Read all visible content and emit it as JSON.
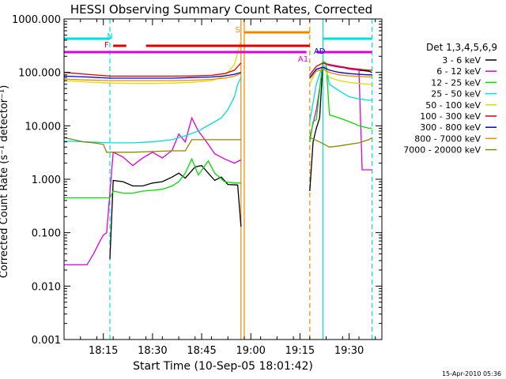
{
  "chart_data": {
    "type": "line",
    "title": "HESSI Observing Summary Count Rates, Corrected",
    "xlabel": "Start Time (10-Sep-05 18:01:42)",
    "ylabel": "Corrected Count Rate (s⁻¹ detector⁻¹)",
    "x_range": [
      "18:03",
      "19:40"
    ],
    "y_scale": "log",
    "ylim": [
      0.001,
      1000
    ],
    "x_ticks": [
      "18:15",
      "18:30",
      "18:45",
      "19:00",
      "19:15",
      "19:30"
    ],
    "y_ticks": [
      "0.001",
      "0.010",
      "0.100",
      "1.000",
      "10.000",
      "100.000",
      "1000.000"
    ],
    "legend_title": "Det 1,3,4,5,6,9",
    "legend_position": "right",
    "series": [
      {
        "name": "3 - 6 keV",
        "color": "#000000",
        "points": [
          [
            "18:17",
            0.032
          ],
          [
            "18:18",
            0.95
          ],
          [
            "18:21",
            0.9
          ],
          [
            "18:24",
            0.75
          ],
          [
            "18:27",
            0.75
          ],
          [
            "18:30",
            0.85
          ],
          [
            "18:33",
            0.9
          ],
          [
            "18:36",
            1.1
          ],
          [
            "18:38",
            1.3
          ],
          [
            "18:40",
            1.05
          ],
          [
            "18:43",
            1.7
          ],
          [
            "18:45",
            1.8
          ],
          [
            "18:47",
            1.3
          ],
          [
            "18:49",
            0.95
          ],
          [
            "18:51",
            1.1
          ],
          [
            "18:53",
            0.8
          ],
          [
            "18:56",
            0.78
          ],
          [
            "18:57",
            0.13
          ],
          null,
          [
            "19:18",
            0.6
          ],
          [
            "19:19",
            5
          ],
          [
            "19:20",
            9
          ],
          [
            "19:21",
            14
          ],
          [
            "19:22",
            150
          ],
          [
            "19:24",
            140
          ],
          [
            "19:27",
            130
          ],
          [
            "19:30",
            120
          ],
          [
            "19:33",
            110
          ],
          [
            "19:36",
            105
          ],
          [
            "19:37",
            100
          ]
        ]
      },
      {
        "name": "6 - 12 keV",
        "color": "#dd00dd",
        "points": [
          [
            "18:03",
            0.025
          ],
          [
            "18:10",
            0.025
          ],
          [
            "18:12",
            0.04
          ],
          [
            "18:14",
            0.07
          ],
          [
            "18:15",
            0.09
          ],
          [
            "18:16",
            0.1
          ],
          [
            "18:18",
            3.2
          ],
          [
            "18:21",
            2.6
          ],
          [
            "18:24",
            1.8
          ],
          [
            "18:27",
            2.5
          ],
          [
            "18:30",
            3.2
          ],
          [
            "18:33",
            2.5
          ],
          [
            "18:36",
            3.5
          ],
          [
            "18:38",
            7
          ],
          [
            "18:40",
            5
          ],
          [
            "18:42",
            14
          ],
          [
            "18:44",
            8
          ],
          [
            "18:47",
            4.5
          ],
          [
            "18:49",
            3
          ],
          [
            "18:52",
            2.4
          ],
          [
            "18:55",
            2
          ],
          [
            "18:57",
            2.3
          ],
          null,
          [
            "19:18",
            6
          ],
          [
            "19:20",
            20
          ],
          [
            "19:21",
            50
          ],
          [
            "19:22",
            150
          ],
          [
            "19:24",
            140
          ],
          [
            "19:27",
            130
          ],
          [
            "19:30",
            115
          ],
          [
            "19:33",
            110
          ],
          [
            "19:34",
            1.5
          ],
          [
            "19:37",
            1.5
          ]
        ]
      },
      {
        "name": "12 - 25 keV",
        "color": "#00dd00",
        "points": [
          [
            "18:03",
            0.45
          ],
          [
            "18:10",
            0.45
          ],
          [
            "18:17",
            0.45
          ],
          [
            "18:18",
            0.6
          ],
          [
            "18:21",
            0.55
          ],
          [
            "18:24",
            0.55
          ],
          [
            "18:27",
            0.6
          ],
          [
            "18:30",
            0.62
          ],
          [
            "18:33",
            0.65
          ],
          [
            "18:36",
            0.75
          ],
          [
            "18:38",
            0.9
          ],
          [
            "18:40",
            1.3
          ],
          [
            "18:42",
            2.4
          ],
          [
            "18:44",
            1.2
          ],
          [
            "18:47",
            2.2
          ],
          [
            "18:49",
            1.3
          ],
          [
            "18:52",
            0.9
          ],
          [
            "18:55",
            0.85
          ],
          [
            "18:57",
            0.85
          ],
          null,
          [
            "19:18",
            5
          ],
          [
            "19:19",
            12
          ],
          [
            "19:20",
            13
          ],
          [
            "19:22",
            160
          ],
          [
            "19:23",
            150
          ],
          [
            "19:24",
            16
          ],
          [
            "19:27",
            14
          ],
          [
            "19:30",
            12
          ],
          [
            "19:33",
            10
          ],
          [
            "19:36",
            9
          ],
          [
            "19:37",
            9
          ]
        ]
      },
      {
        "name": "25 - 50 keV",
        "color": "#00dddd",
        "points": [
          [
            "18:03",
            5.2
          ],
          [
            "18:10",
            5
          ],
          [
            "18:17",
            4.8
          ],
          [
            "18:24",
            4.8
          ],
          [
            "18:30",
            5
          ],
          [
            "18:36",
            5.5
          ],
          [
            "18:40",
            6.5
          ],
          [
            "18:44",
            8
          ],
          [
            "18:48",
            11
          ],
          [
            "18:51",
            14
          ],
          [
            "18:53",
            20
          ],
          [
            "18:55",
            35
          ],
          [
            "18:56",
            60
          ],
          [
            "18:57",
            80
          ],
          null,
          [
            "19:18",
            12
          ],
          [
            "19:20",
            60
          ],
          [
            "19:22",
            140
          ],
          [
            "19:23",
            120
          ],
          [
            "19:24",
            60
          ],
          [
            "19:27",
            45
          ],
          [
            "19:30",
            35
          ],
          [
            "19:33",
            32
          ],
          [
            "19:36",
            30
          ],
          [
            "19:37",
            30
          ]
        ]
      },
      {
        "name": "50 - 100 keV",
        "color": "#dddd00",
        "points": [
          [
            "18:03",
            70
          ],
          [
            "18:10",
            66
          ],
          [
            "18:17",
            63
          ],
          [
            "18:24",
            62
          ],
          [
            "18:30",
            62
          ],
          [
            "18:36",
            63
          ],
          [
            "18:42",
            65
          ],
          [
            "18:48",
            70
          ],
          [
            "18:52",
            85
          ],
          [
            "18:55",
            140
          ],
          [
            "18:57",
            400
          ],
          null,
          [
            "19:18",
            60
          ],
          [
            "19:20",
            110
          ],
          [
            "19:22",
            130
          ],
          [
            "19:24",
            80
          ],
          [
            "19:27",
            70
          ],
          [
            "19:30",
            65
          ],
          [
            "19:33",
            62
          ],
          [
            "19:36",
            60
          ],
          [
            "19:37",
            60
          ]
        ]
      },
      {
        "name": "100 - 300 keV",
        "color": "#dd0000",
        "points": [
          [
            "18:03",
            100
          ],
          [
            "18:10",
            92
          ],
          [
            "18:17",
            85
          ],
          [
            "18:24",
            85
          ],
          [
            "18:30",
            85
          ],
          [
            "18:36",
            85
          ],
          [
            "18:42",
            86
          ],
          [
            "18:48",
            88
          ],
          [
            "18:52",
            95
          ],
          [
            "18:55",
            110
          ],
          [
            "18:57",
            150
          ],
          null,
          [
            "19:18",
            90
          ],
          [
            "19:20",
            130
          ],
          [
            "19:22",
            150
          ],
          [
            "19:24",
            135
          ],
          [
            "19:27",
            125
          ],
          [
            "19:30",
            120
          ],
          [
            "19:33",
            115
          ],
          [
            "19:36",
            110
          ],
          [
            "19:37",
            110
          ]
        ]
      },
      {
        "name": "300 - 800 keV",
        "color": "#0000cc",
        "points": [
          [
            "18:03",
            85
          ],
          [
            "18:10",
            82
          ],
          [
            "18:17",
            78
          ],
          [
            "18:24",
            78
          ],
          [
            "18:30",
            78
          ],
          [
            "18:36",
            78
          ],
          [
            "18:42",
            80
          ],
          [
            "18:48",
            82
          ],
          [
            "18:52",
            86
          ],
          [
            "18:55",
            92
          ],
          [
            "18:57",
            100
          ],
          null,
          [
            "19:18",
            80
          ],
          [
            "19:20",
            115
          ],
          [
            "19:22",
            125
          ],
          [
            "19:24",
            110
          ],
          [
            "19:27",
            100
          ],
          [
            "19:30",
            95
          ],
          [
            "19:33",
            92
          ],
          [
            "19:36",
            90
          ],
          [
            "19:37",
            90
          ]
        ]
      },
      {
        "name": "800 - 7000 keV",
        "color": "#ee8800",
        "points": [
          [
            "18:03",
            75
          ],
          [
            "18:10",
            72
          ],
          [
            "18:17",
            70
          ],
          [
            "18:24",
            70
          ],
          [
            "18:30",
            70
          ],
          [
            "18:36",
            70
          ],
          [
            "18:42",
            71
          ],
          [
            "18:48",
            74
          ],
          [
            "18:52",
            78
          ],
          [
            "18:55",
            85
          ],
          [
            "18:57",
            95
          ],
          null,
          [
            "19:18",
            75
          ],
          [
            "19:20",
            105
          ],
          [
            "19:22",
            115
          ],
          [
            "19:24",
            100
          ],
          [
            "19:27",
            90
          ],
          [
            "19:30",
            86
          ],
          [
            "19:33",
            84
          ],
          [
            "19:36",
            82
          ],
          [
            "19:37",
            82
          ]
        ]
      },
      {
        "name": "7000 - 20000 keV",
        "color": "#888800",
        "points": [
          [
            "18:03",
            6
          ],
          [
            "18:06",
            5.5
          ],
          [
            "18:09",
            5
          ],
          [
            "18:12",
            4.8
          ],
          [
            "18:15",
            4.5
          ],
          [
            "18:16",
            3.2
          ],
          [
            "18:24",
            3.2
          ],
          [
            "18:30",
            3.3
          ],
          [
            "18:36",
            3.4
          ],
          [
            "18:40",
            3.4
          ],
          [
            "18:42",
            5.5
          ],
          [
            "18:48",
            5.5
          ],
          [
            "18:53",
            5.5
          ],
          [
            "18:56",
            5.5
          ],
          [
            "18:57",
            5.5
          ],
          null,
          [
            "19:18",
            6
          ],
          [
            "19:21",
            5
          ],
          [
            "19:24",
            4
          ],
          [
            "19:27",
            4.2
          ],
          [
            "19:30",
            4.5
          ],
          [
            "19:33",
            4.8
          ],
          [
            "19:36",
            5.5
          ],
          [
            "19:37",
            6
          ]
        ]
      }
    ],
    "flag_bars": [
      {
        "label": "N",
        "color": "#00dddd",
        "segments": [
          [
            "18:03",
            "18:17"
          ],
          [
            "19:22",
            "19:37"
          ]
        ]
      },
      {
        "label": "F",
        "color": "#dd0000",
        "segments": [
          [
            "18:18",
            "18:22"
          ],
          [
            "18:28",
            "19:18"
          ]
        ]
      },
      {
        "label": "S",
        "color": "#ee8800",
        "segments": [
          [
            "18:58",
            "19:18"
          ]
        ]
      },
      {
        "label": "AD",
        "color": "#0000cc",
        "segments": []
      },
      {
        "label": "A1",
        "color": "#dd00dd",
        "segments": [
          [
            "18:03",
            "19:17"
          ],
          [
            "19:20",
            "19:37"
          ]
        ]
      }
    ],
    "vertical_markers": [
      {
        "time": "18:17",
        "color": "#00dddd",
        "style": "dashed"
      },
      {
        "time": "18:57",
        "color": "#ee8800",
        "style": "solid"
      },
      {
        "time": "18:58",
        "color": "#ee8800",
        "style": "solid"
      },
      {
        "time": "19:18",
        "color": "#ee8800",
        "style": "dashed"
      },
      {
        "time": "19:22",
        "color": "#00dddd",
        "style": "solid"
      },
      {
        "time": "19:37",
        "color": "#00dddd",
        "style": "dashed"
      }
    ],
    "grid": false
  },
  "footer": {
    "timestamp": "15-Apr-2010 05:36"
  }
}
